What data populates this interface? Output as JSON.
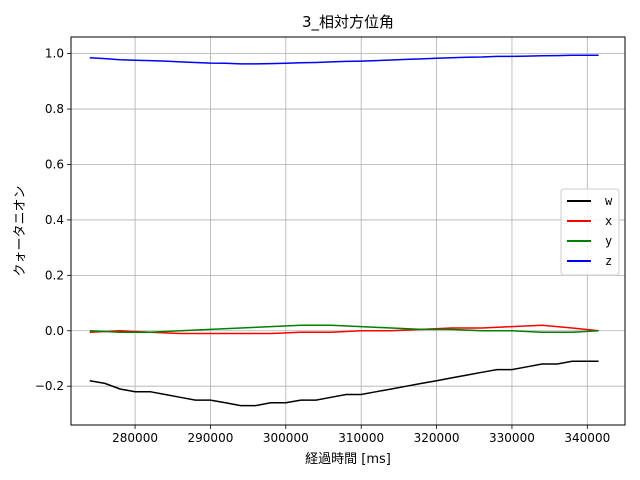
{
  "chart_data": {
    "type": "line",
    "title": "3_相対方位角",
    "xlabel": "経過時間 [ms]",
    "ylabel": "クォータニオン",
    "xlim": [
      271500,
      345000
    ],
    "ylim": [
      -0.34,
      1.06
    ],
    "xticks": [
      280000,
      290000,
      300000,
      310000,
      320000,
      330000,
      340000
    ],
    "yticks": [
      -0.2,
      0.0,
      0.2,
      0.4,
      0.6,
      0.8,
      1.0
    ],
    "ytick_labels": [
      "−0.2",
      "0.0",
      "0.2",
      "0.4",
      "0.6",
      "0.8",
      "1.0"
    ],
    "grid": true,
    "legend_position": "center-right",
    "series": [
      {
        "name": "w",
        "color": "#000000",
        "x": [
          274000,
          276000,
          278000,
          280000,
          282000,
          284000,
          286000,
          288000,
          290000,
          292000,
          294000,
          296000,
          298000,
          300000,
          302000,
          304000,
          306000,
          308000,
          310000,
          312000,
          314000,
          316000,
          318000,
          320000,
          322000,
          324000,
          326000,
          328000,
          330000,
          332000,
          334000,
          336000,
          338000,
          340000,
          341500
        ],
        "y": [
          -0.18,
          -0.19,
          -0.21,
          -0.22,
          -0.22,
          -0.23,
          -0.24,
          -0.25,
          -0.25,
          -0.26,
          -0.27,
          -0.27,
          -0.26,
          -0.26,
          -0.25,
          -0.25,
          -0.24,
          -0.23,
          -0.23,
          -0.22,
          -0.21,
          -0.2,
          -0.19,
          -0.18,
          -0.17,
          -0.16,
          -0.15,
          -0.14,
          -0.14,
          -0.13,
          -0.12,
          -0.12,
          -0.11,
          -0.11,
          -0.11
        ]
      },
      {
        "name": "x",
        "color": "#ff0000",
        "x": [
          274000,
          278000,
          282000,
          286000,
          290000,
          294000,
          298000,
          302000,
          306000,
          310000,
          314000,
          318000,
          322000,
          326000,
          330000,
          334000,
          338000,
          341500
        ],
        "y": [
          -0.005,
          0.0,
          -0.005,
          -0.01,
          -0.01,
          -0.01,
          -0.01,
          -0.005,
          -0.005,
          0.0,
          0.0,
          0.005,
          0.01,
          0.01,
          0.015,
          0.02,
          0.01,
          0.0
        ]
      },
      {
        "name": "y",
        "color": "#008000",
        "x": [
          274000,
          278000,
          282000,
          286000,
          290000,
          294000,
          298000,
          302000,
          306000,
          310000,
          314000,
          318000,
          322000,
          326000,
          330000,
          334000,
          338000,
          341500
        ],
        "y": [
          0.0,
          -0.005,
          -0.005,
          0.0,
          0.005,
          0.01,
          0.015,
          0.02,
          0.02,
          0.015,
          0.01,
          0.005,
          0.005,
          0.0,
          0.0,
          -0.005,
          -0.005,
          0.0
        ]
      },
      {
        "name": "z",
        "color": "#0000ff",
        "x": [
          274000,
          276000,
          278000,
          280000,
          282000,
          284000,
          286000,
          288000,
          290000,
          292000,
          294000,
          296000,
          298000,
          300000,
          302000,
          304000,
          306000,
          308000,
          310000,
          312000,
          314000,
          316000,
          318000,
          320000,
          322000,
          324000,
          326000,
          328000,
          330000,
          332000,
          334000,
          336000,
          338000,
          340000,
          341500
        ],
        "y": [
          0.985,
          0.982,
          0.978,
          0.976,
          0.975,
          0.973,
          0.97,
          0.968,
          0.966,
          0.965,
          0.963,
          0.963,
          0.964,
          0.965,
          0.967,
          0.968,
          0.97,
          0.972,
          0.973,
          0.975,
          0.977,
          0.979,
          0.981,
          0.983,
          0.985,
          0.987,
          0.988,
          0.99,
          0.99,
          0.991,
          0.992,
          0.993,
          0.994,
          0.994,
          0.994
        ]
      }
    ]
  }
}
